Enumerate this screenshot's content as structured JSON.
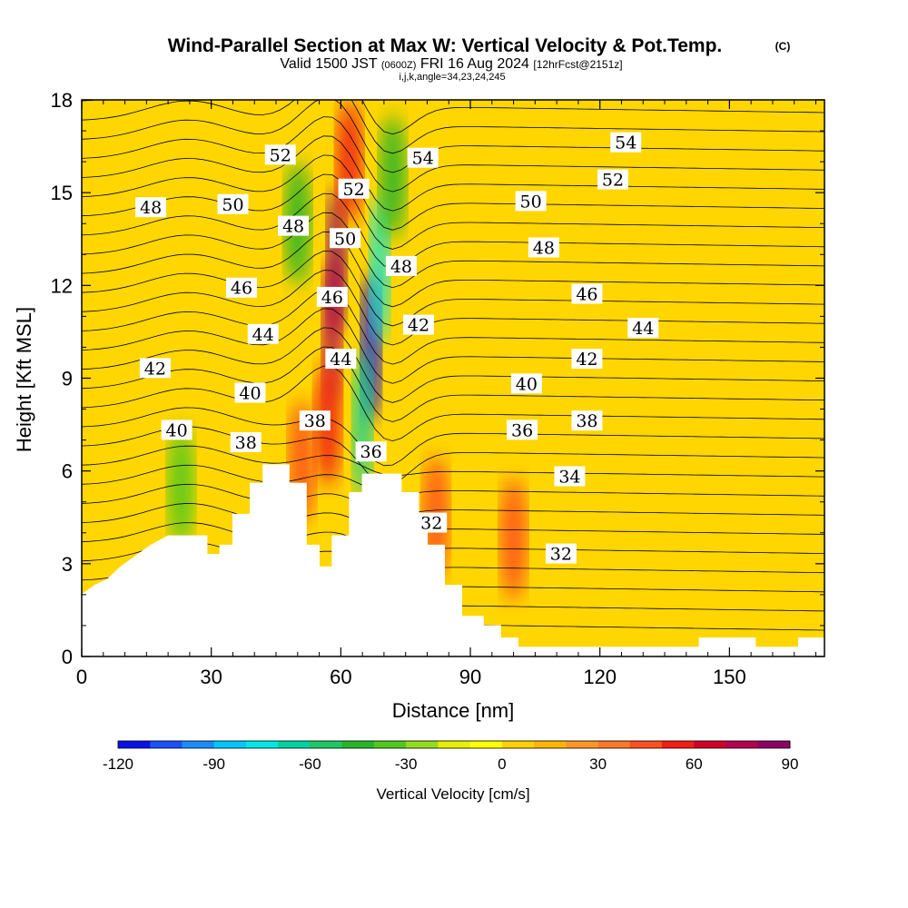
{
  "title": {
    "main": "Wind-Parallel Section at Max W: Vertical Velocity & Pot.Temp.",
    "copyright": "(C)",
    "valid_prefix": "Valid 1500 JST",
    "valid_z": "(0600Z)",
    "valid_date": "FRI 16 Aug 2024",
    "fcst": "[12hrFcst@2151z]",
    "params": "i,j,k,angle=34,23,24,245"
  },
  "chart_data": {
    "type": "heatmap",
    "xlabel": "Distance [nm]",
    "ylabel": "Height [Kft MSL]",
    "xlim": [
      0,
      172
    ],
    "ylim": [
      0,
      18
    ],
    "xticks": [
      0,
      30,
      60,
      90,
      120,
      150
    ],
    "yticks": [
      0,
      3,
      6,
      9,
      12,
      15,
      18
    ],
    "colorbar": {
      "label": "Vertical Velocity [cm/s]",
      "ticks": [
        -120,
        -90,
        -60,
        -30,
        0,
        30,
        60,
        90
      ],
      "levels": [
        -120,
        -110,
        -100,
        -90,
        -80,
        -70,
        -60,
        -50,
        -40,
        -30,
        -20,
        -10,
        0,
        10,
        20,
        30,
        40,
        50,
        60,
        70,
        80,
        90
      ],
      "colors": [
        "#0a10e8",
        "#1a50ff",
        "#1a8cff",
        "#00c8ff",
        "#00e6e6",
        "#00d2a0",
        "#1ec864",
        "#28b428",
        "#50c81e",
        "#96dc1e",
        "#e6f000",
        "#ffff00",
        "#ffd200",
        "#ffb400",
        "#ff9628",
        "#ff7828",
        "#ff501e",
        "#f01e14",
        "#d20028",
        "#b40050",
        "#8c0064"
      ]
    },
    "terrain_kft": [
      [
        0,
        2
      ],
      [
        3,
        2.3
      ],
      [
        6,
        2.5
      ],
      [
        9,
        2.9
      ],
      [
        13,
        3.3
      ],
      [
        16,
        3.6
      ],
      [
        20,
        3.9
      ],
      [
        29,
        3.9
      ],
      [
        29,
        3.3
      ],
      [
        32,
        3.3
      ],
      [
        32,
        3.6
      ],
      [
        35,
        3.6
      ],
      [
        35,
        4.6
      ],
      [
        39,
        4.6
      ],
      [
        39,
        5.6
      ],
      [
        42,
        5.6
      ],
      [
        42,
        6.2
      ],
      [
        48,
        6.2
      ],
      [
        48,
        5.6
      ],
      [
        52,
        5.6
      ],
      [
        52,
        3.6
      ],
      [
        55,
        3.6
      ],
      [
        55,
        2.9
      ],
      [
        58,
        2.9
      ],
      [
        58,
        3.9
      ],
      [
        62,
        3.9
      ],
      [
        62,
        5.3
      ],
      [
        65,
        5.3
      ],
      [
        65,
        5.9
      ],
      [
        74,
        5.9
      ],
      [
        74,
        5.3
      ],
      [
        78,
        5.3
      ],
      [
        78,
        4.6
      ],
      [
        80,
        4.6
      ],
      [
        80,
        3.6
      ],
      [
        84,
        3.6
      ],
      [
        84,
        2.3
      ],
      [
        88,
        2.3
      ],
      [
        88,
        1.3
      ],
      [
        93,
        1.3
      ],
      [
        93,
        1.0
      ],
      [
        97,
        1.0
      ],
      [
        97,
        0.6
      ],
      [
        101,
        0.6
      ],
      [
        101,
        0.3
      ],
      [
        143,
        0.3
      ],
      [
        143,
        0.6
      ],
      [
        156,
        0.6
      ],
      [
        156,
        0.3
      ],
      [
        166,
        0.3
      ],
      [
        166,
        0.6
      ],
      [
        172,
        0.6
      ]
    ],
    "w_features": [
      {
        "x": 59,
        "z": 12.8,
        "w": 90
      },
      {
        "x": 58,
        "z": 10.5,
        "w": 70
      },
      {
        "x": 57,
        "z": 7.5,
        "w": 55
      },
      {
        "x": 51,
        "z": 6.3,
        "w": 45
      },
      {
        "x": 62,
        "z": 16.0,
        "w": 50
      },
      {
        "x": 67,
        "z": 10.0,
        "w": -115
      },
      {
        "x": 69,
        "z": 12.5,
        "w": -80
      },
      {
        "x": 65,
        "z": 7.5,
        "w": -70
      },
      {
        "x": 72,
        "z": 15.5,
        "w": -50
      },
      {
        "x": 50,
        "z": 14.0,
        "w": -45
      },
      {
        "x": 23,
        "z": 5.5,
        "w": -40
      },
      {
        "x": 100,
        "z": 3.8,
        "w": 42
      },
      {
        "x": 82,
        "z": 4.5,
        "w": 45
      }
    ],
    "theta_labels_k": [
      {
        "text": "54",
        "x": 126,
        "z": 16.6
      },
      {
        "text": "52",
        "x": 123,
        "z": 15.4
      },
      {
        "text": "50",
        "x": 104,
        "z": 14.7
      },
      {
        "text": "48",
        "x": 107,
        "z": 13.2
      },
      {
        "text": "46",
        "x": 117,
        "z": 11.7
      },
      {
        "text": "44",
        "x": 130,
        "z": 10.6
      },
      {
        "text": "42",
        "x": 117,
        "z": 9.6
      },
      {
        "text": "40",
        "x": 103,
        "z": 8.8
      },
      {
        "text": "38",
        "x": 117,
        "z": 7.6
      },
      {
        "text": "36",
        "x": 102,
        "z": 7.3
      },
      {
        "text": "34",
        "x": 113,
        "z": 5.8
      },
      {
        "text": "32",
        "x": 111,
        "z": 3.3
      },
      {
        "text": "32",
        "x": 81,
        "z": 4.3
      },
      {
        "text": "36",
        "x": 67,
        "z": 6.6
      },
      {
        "text": "38",
        "x": 54,
        "z": 7.6
      },
      {
        "text": "44",
        "x": 60,
        "z": 9.6
      },
      {
        "text": "46",
        "x": 58,
        "z": 11.6
      },
      {
        "text": "50",
        "x": 61,
        "z": 13.5
      },
      {
        "text": "52",
        "x": 63,
        "z": 15.1
      },
      {
        "text": "48",
        "x": 49,
        "z": 13.9
      },
      {
        "text": "52",
        "x": 46,
        "z": 16.2
      },
      {
        "text": "48",
        "x": 74,
        "z": 12.6
      },
      {
        "text": "42",
        "x": 78,
        "z": 10.7
      },
      {
        "text": "54",
        "x": 79,
        "z": 16.1
      },
      {
        "text": "50",
        "x": 35,
        "z": 14.6
      },
      {
        "text": "48",
        "x": 16,
        "z": 14.5
      },
      {
        "text": "46",
        "x": 37,
        "z": 11.9
      },
      {
        "text": "44",
        "x": 42,
        "z": 10.4
      },
      {
        "text": "42",
        "x": 17,
        "z": 9.3
      },
      {
        "text": "40",
        "x": 39,
        "z": 8.5
      },
      {
        "text": "40",
        "x": 22,
        "z": 7.3
      },
      {
        "text": "38",
        "x": 38,
        "z": 6.9
      }
    ]
  }
}
